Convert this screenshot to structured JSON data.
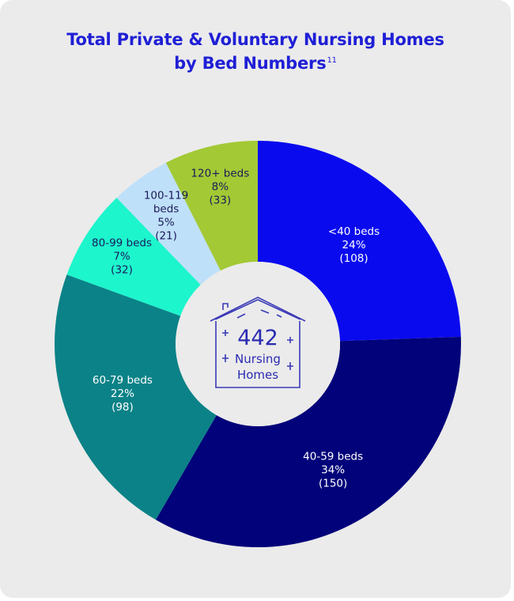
{
  "colors": {
    "title": "#1f1fd6",
    "background": "#ebebeb",
    "icon": "#3a3ab8"
  },
  "center": {
    "value": "442",
    "line1": "Nursing",
    "line2": "Homes",
    "icon": "house-icon"
  },
  "chart_data": {
    "type": "pie",
    "variant": "donut",
    "title": "Total Private & Voluntary Nursing Homes",
    "title_line2": "by Bed Numbers",
    "title_footnote": "11",
    "total": 442,
    "slices": [
      {
        "label": "<40 beds",
        "label_lines": [
          "<40 beds"
        ],
        "percent": "24%",
        "count": "(108)",
        "value": 108,
        "color": "#0a0aef",
        "text_color": "#ffffff"
      },
      {
        "label": "40-59 beds",
        "label_lines": [
          "40-59 beds"
        ],
        "percent": "34%",
        "count": "(150)",
        "value": 150,
        "color": "#02027a",
        "text_color": "#ffffff"
      },
      {
        "label": "60-79 beds",
        "label_lines": [
          "60-79 beds"
        ],
        "percent": "22%",
        "count": "(98)",
        "value": 98,
        "color": "#0b8287",
        "text_color": "#ffffff"
      },
      {
        "label": "80-99 beds",
        "label_lines": [
          "80-99 beds"
        ],
        "percent": "7%",
        "count": "(32)",
        "value": 32,
        "color": "#1df5cd",
        "text_color": "#1b1b5a"
      },
      {
        "label": "100-119 beds",
        "label_lines": [
          "100-119",
          "beds"
        ],
        "percent": "5%",
        "count": "(21)",
        "value": 21,
        "color": "#bfe0f9",
        "text_color": "#1b1b5a"
      },
      {
        "label": "120+ beds",
        "label_lines": [
          "120+ beds"
        ],
        "percent": "8%",
        "count": "(33)",
        "value": 33,
        "color": "#a3c935",
        "text_color": "#1b1b5a"
      }
    ]
  }
}
